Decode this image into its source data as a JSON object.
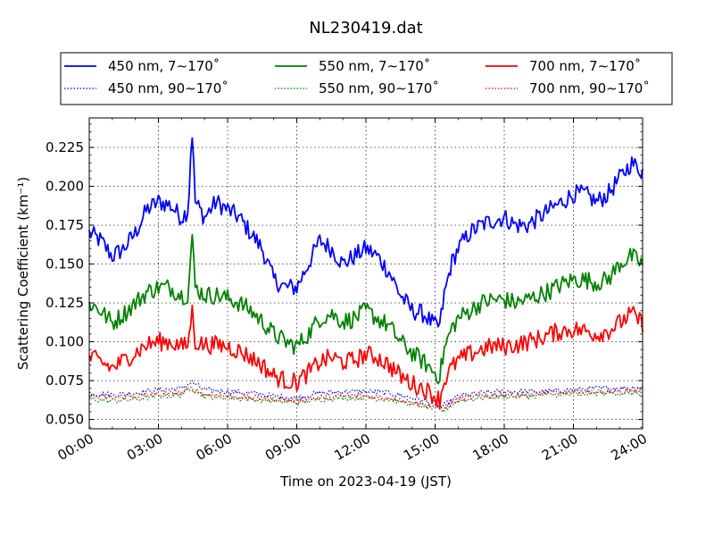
{
  "chart_data": {
    "type": "line",
    "title": "NL230419.dat",
    "xlabel": "Time on 2023-04-19 (JST)",
    "ylabel": "Scattering Coefficient (km⁻¹)",
    "xlim": [
      0,
      24
    ],
    "ylim": [
      0.044,
      0.244
    ],
    "x_ticks": [
      0,
      3,
      6,
      9,
      12,
      15,
      18,
      21,
      24
    ],
    "x_tick_labels": [
      "00:00",
      "03:00",
      "06:00",
      "09:00",
      "12:00",
      "15:00",
      "18:00",
      "21:00",
      "24:00"
    ],
    "y_ticks": [
      0.05,
      0.075,
      0.1,
      0.125,
      0.15,
      0.175,
      0.2,
      0.225
    ],
    "y_tick_labels": [
      "0.050",
      "0.075",
      "0.100",
      "0.125",
      "0.150",
      "0.175",
      "0.200",
      "0.225"
    ],
    "grid": true,
    "legend_position": "top",
    "series": [
      {
        "name": "450 nm, 7∼170˚",
        "color": "#0000ff",
        "style": "solid",
        "x": [
          0,
          0.5,
          1,
          1.5,
          2,
          2.5,
          3,
          3.5,
          4,
          4.3,
          4.45,
          4.6,
          5,
          5.5,
          6,
          6.5,
          7,
          7.5,
          8,
          8.5,
          9,
          9.5,
          10,
          10.5,
          11,
          11.5,
          12,
          12.5,
          13,
          13.5,
          14,
          14.5,
          15,
          15.2,
          15.4,
          15.7,
          16,
          16.5,
          17,
          17.5,
          18,
          18.5,
          19,
          19.5,
          20,
          20.5,
          21,
          21.5,
          22,
          22.5,
          23,
          23.5,
          24
        ],
        "y": [
          0.17,
          0.165,
          0.155,
          0.16,
          0.17,
          0.185,
          0.19,
          0.188,
          0.18,
          0.185,
          0.24,
          0.19,
          0.18,
          0.19,
          0.185,
          0.18,
          0.17,
          0.16,
          0.14,
          0.135,
          0.135,
          0.15,
          0.165,
          0.16,
          0.15,
          0.155,
          0.16,
          0.155,
          0.145,
          0.13,
          0.12,
          0.118,
          0.11,
          0.11,
          0.13,
          0.15,
          0.16,
          0.17,
          0.175,
          0.178,
          0.18,
          0.175,
          0.175,
          0.18,
          0.185,
          0.19,
          0.195,
          0.195,
          0.19,
          0.195,
          0.205,
          0.215,
          0.21
        ]
      },
      {
        "name": "450 nm, 90∼170˚",
        "color": "#0000ff",
        "style": "dotted",
        "x": [
          0,
          1,
          2,
          3,
          4,
          4.45,
          5,
          6,
          7,
          8,
          9,
          10,
          11,
          12,
          13,
          14,
          15,
          15.3,
          16,
          17,
          18,
          19,
          20,
          21,
          22,
          23,
          24
        ],
        "y": [
          0.067,
          0.066,
          0.067,
          0.069,
          0.07,
          0.074,
          0.069,
          0.068,
          0.067,
          0.065,
          0.064,
          0.067,
          0.068,
          0.068,
          0.067,
          0.064,
          0.06,
          0.058,
          0.065,
          0.067,
          0.068,
          0.068,
          0.068,
          0.069,
          0.07,
          0.07,
          0.071
        ]
      },
      {
        "name": "550 nm, 7∼170˚",
        "color": "#008000",
        "style": "solid",
        "x": [
          0,
          0.5,
          1,
          1.5,
          2,
          2.5,
          3,
          3.5,
          4,
          4.3,
          4.45,
          4.6,
          5,
          5.5,
          6,
          6.5,
          7,
          7.5,
          8,
          8.5,
          9,
          9.5,
          10,
          10.5,
          11,
          11.5,
          12,
          12.5,
          13,
          13.5,
          14,
          14.5,
          15,
          15.2,
          15.4,
          15.7,
          16,
          16.5,
          17,
          17.5,
          18,
          18.5,
          19,
          19.5,
          20,
          20.5,
          21,
          21.5,
          22,
          22.5,
          23,
          23.5,
          24
        ],
        "y": [
          0.125,
          0.12,
          0.112,
          0.118,
          0.125,
          0.132,
          0.135,
          0.135,
          0.13,
          0.13,
          0.17,
          0.135,
          0.13,
          0.13,
          0.128,
          0.125,
          0.12,
          0.113,
          0.105,
          0.1,
          0.097,
          0.105,
          0.115,
          0.118,
          0.113,
          0.115,
          0.12,
          0.115,
          0.11,
          0.1,
          0.093,
          0.087,
          0.08,
          0.078,
          0.095,
          0.108,
          0.115,
          0.12,
          0.125,
          0.127,
          0.127,
          0.125,
          0.127,
          0.13,
          0.133,
          0.137,
          0.14,
          0.14,
          0.138,
          0.14,
          0.15,
          0.155,
          0.15
        ]
      },
      {
        "name": "550 nm, 90∼170˚",
        "color": "#008000",
        "style": "dotted",
        "x": [
          0,
          1,
          2,
          3,
          4,
          4.45,
          5,
          6,
          7,
          8,
          9,
          10,
          11,
          12,
          13,
          14,
          15,
          15.3,
          16,
          17,
          18,
          19,
          20,
          21,
          22,
          23,
          24
        ],
        "y": [
          0.063,
          0.062,
          0.063,
          0.065,
          0.066,
          0.07,
          0.065,
          0.064,
          0.063,
          0.062,
          0.061,
          0.063,
          0.064,
          0.064,
          0.063,
          0.06,
          0.057,
          0.055,
          0.062,
          0.064,
          0.065,
          0.065,
          0.066,
          0.066,
          0.067,
          0.067,
          0.067
        ]
      },
      {
        "name": "700 nm, 7∼170˚",
        "color": "#ff0000",
        "style": "solid",
        "x": [
          0,
          0.5,
          1,
          1.5,
          2,
          2.5,
          3,
          3.5,
          4,
          4.3,
          4.45,
          4.6,
          5,
          5.5,
          6,
          6.5,
          7,
          7.5,
          8,
          8.5,
          9,
          9.5,
          10,
          10.5,
          11,
          11.5,
          12,
          12.5,
          13,
          13.5,
          14,
          14.5,
          15,
          15.2,
          15.4,
          15.7,
          16,
          16.5,
          17,
          17.5,
          18,
          18.5,
          19,
          19.5,
          20,
          20.5,
          21,
          21.5,
          22,
          22.5,
          23,
          23.5,
          24
        ],
        "y": [
          0.09,
          0.087,
          0.083,
          0.088,
          0.093,
          0.098,
          0.1,
          0.1,
          0.097,
          0.098,
          0.122,
          0.1,
          0.098,
          0.098,
          0.097,
          0.094,
          0.09,
          0.085,
          0.078,
          0.075,
          0.074,
          0.08,
          0.087,
          0.09,
          0.087,
          0.088,
          0.092,
          0.09,
          0.085,
          0.078,
          0.073,
          0.07,
          0.065,
          0.063,
          0.075,
          0.083,
          0.088,
          0.092,
          0.095,
          0.097,
          0.097,
          0.098,
          0.1,
          0.102,
          0.105,
          0.107,
          0.108,
          0.107,
          0.105,
          0.107,
          0.112,
          0.118,
          0.112
        ]
      },
      {
        "name": "700 nm, 90∼170˚",
        "color": "#ff0000",
        "style": "dotted",
        "x": [
          0,
          1,
          2,
          3,
          4,
          4.45,
          5,
          6,
          7,
          8,
          9,
          10,
          11,
          12,
          13,
          14,
          15,
          15.3,
          16,
          17,
          18,
          19,
          20,
          21,
          22,
          23,
          24
        ],
        "y": [
          0.065,
          0.064,
          0.065,
          0.066,
          0.067,
          0.07,
          0.066,
          0.065,
          0.064,
          0.063,
          0.062,
          0.064,
          0.065,
          0.065,
          0.064,
          0.061,
          0.058,
          0.057,
          0.063,
          0.065,
          0.066,
          0.066,
          0.067,
          0.067,
          0.068,
          0.068,
          0.069
        ]
      }
    ]
  }
}
